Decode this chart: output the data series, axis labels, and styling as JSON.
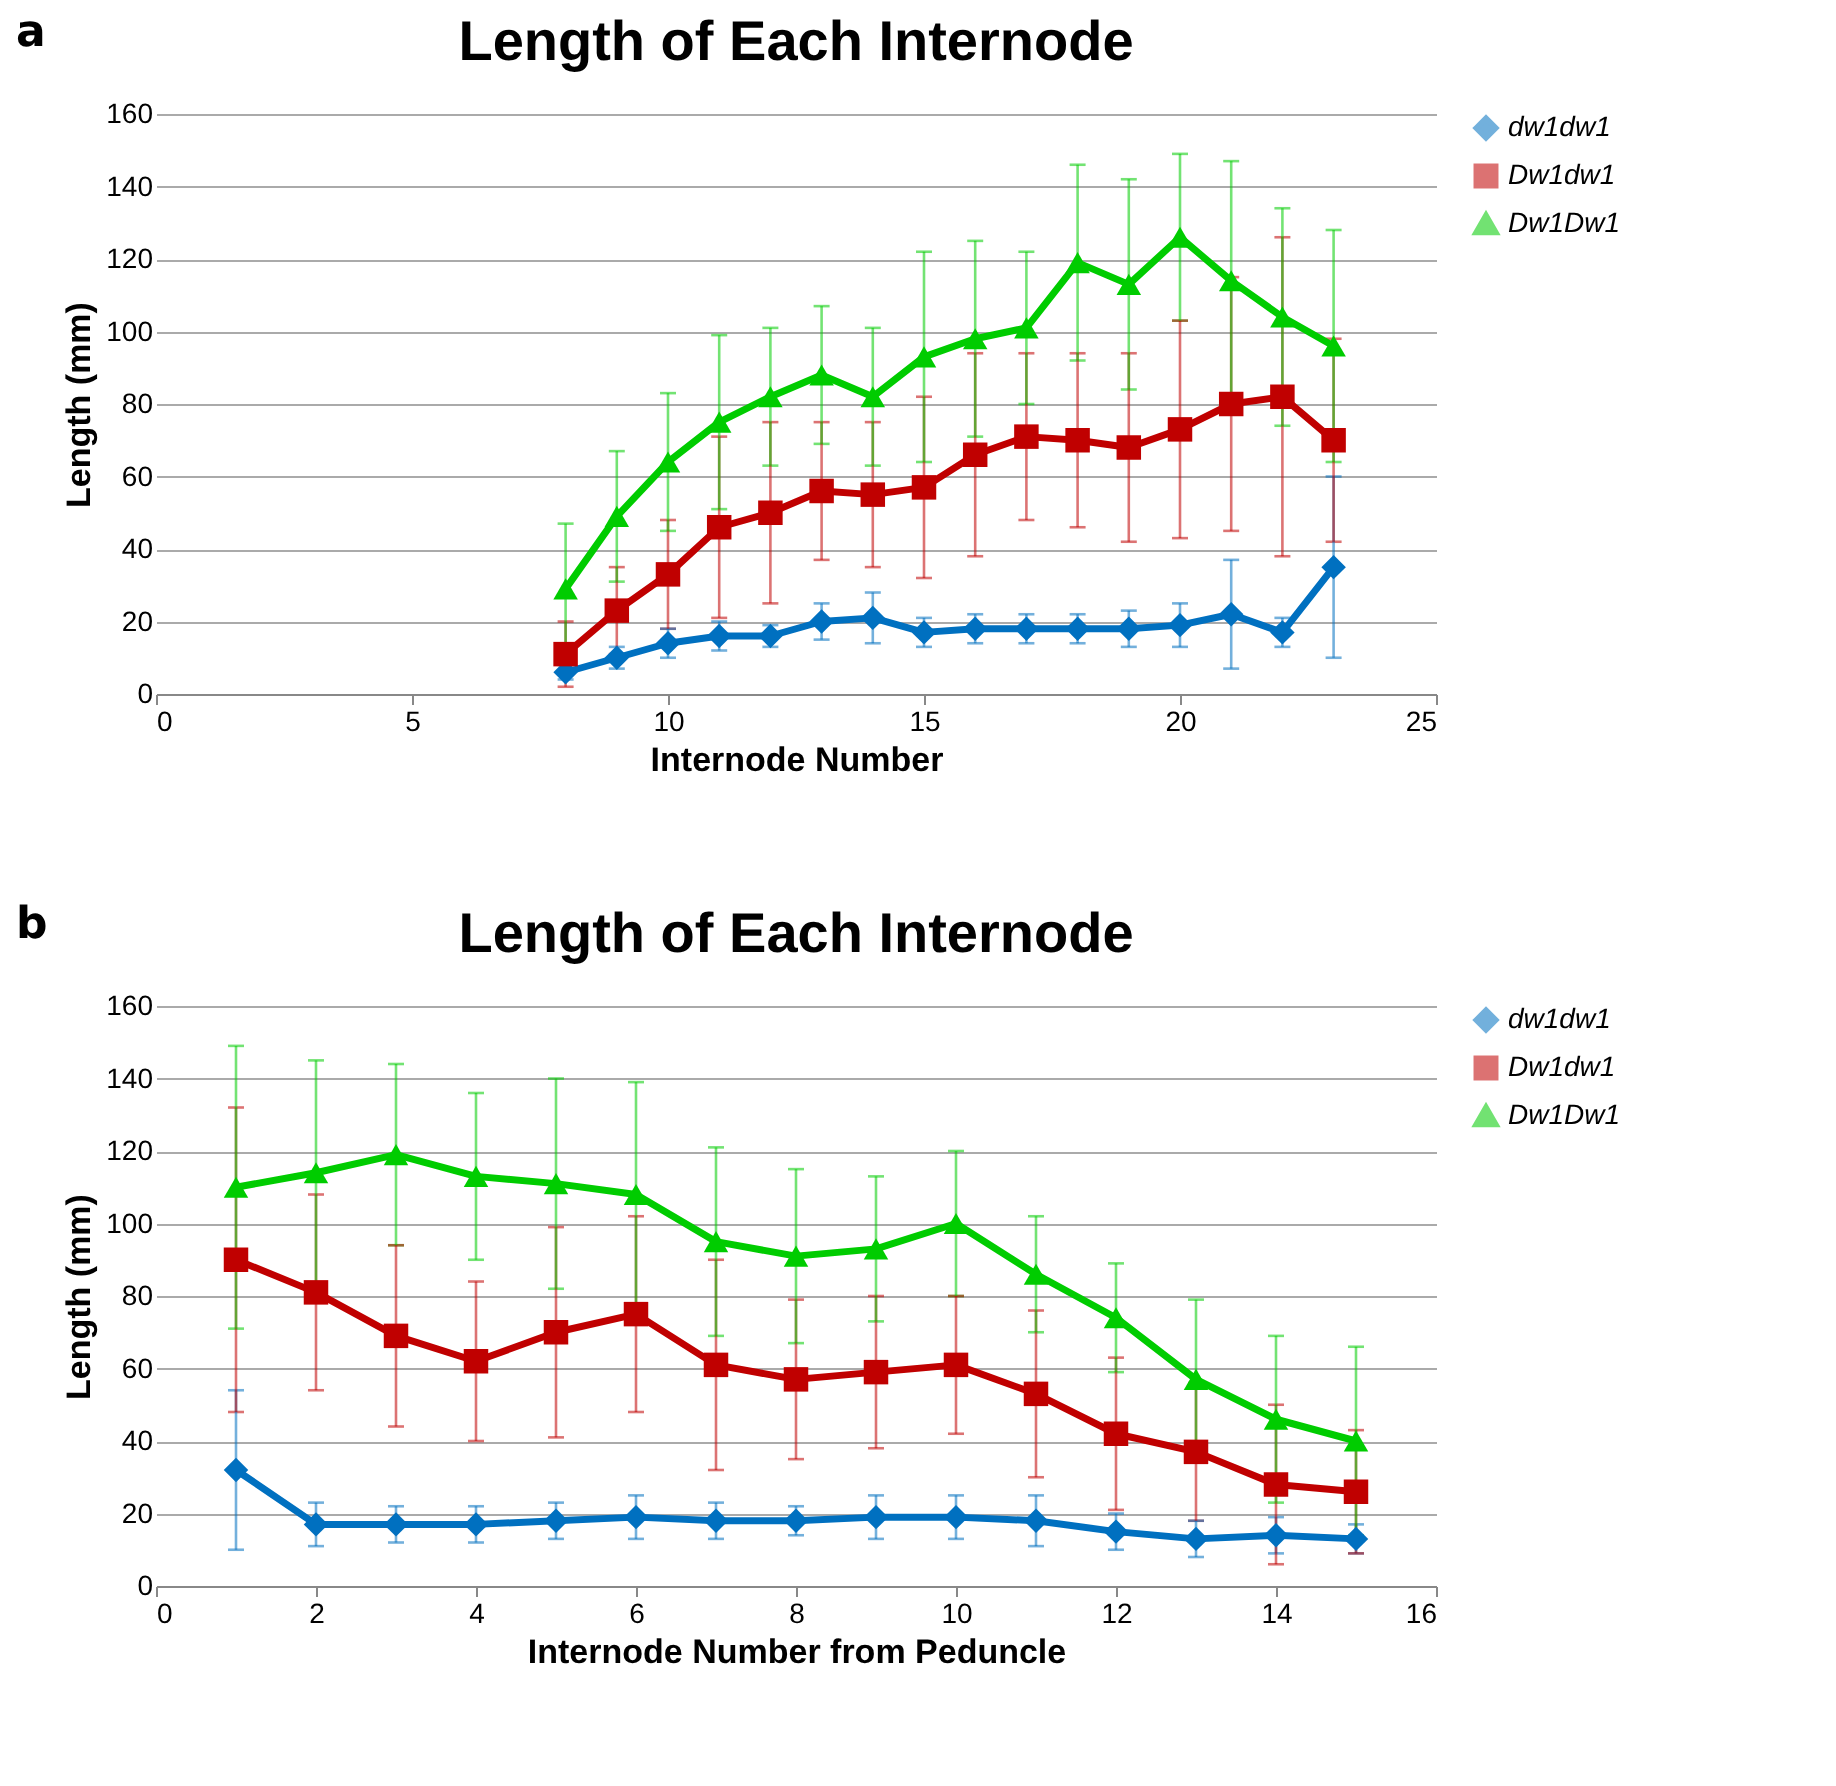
{
  "chart_data": [
    {
      "type": "line",
      "title": "Length of Each Internode",
      "xlabel": "Internode Number",
      "ylabel": "Length (mm)",
      "annotations": [
        "a"
      ],
      "x": [
        8,
        9,
        10,
        11,
        12,
        13,
        14,
        15,
        16,
        17,
        18,
        19,
        20,
        21,
        22,
        23
      ],
      "xlim": [
        0,
        25
      ],
      "xticks": [
        0,
        5,
        10,
        15,
        20,
        25
      ],
      "ylim": [
        0,
        160
      ],
      "yticks": [
        0,
        20,
        40,
        60,
        80,
        100,
        120,
        140,
        160
      ],
      "grid": "y",
      "legend": "right",
      "series": [
        {
          "name": "dw1dw1",
          "color": "#0070c0",
          "marker": "diamond",
          "values": [
            6,
            10,
            14,
            16,
            16,
            20,
            21,
            17,
            18,
            18,
            18,
            18,
            19,
            22,
            17,
            35
          ],
          "errors": [
            2,
            3,
            4,
            4,
            3,
            5,
            7,
            4,
            4,
            4,
            4,
            5,
            6,
            15,
            4,
            25
          ]
        },
        {
          "name": "Dw1dw1",
          "color": "#c00000",
          "marker": "square",
          "values": [
            11,
            23,
            33,
            46,
            50,
            56,
            55,
            57,
            66,
            71,
            70,
            68,
            73,
            80,
            82,
            70
          ],
          "errors": [
            9,
            12,
            15,
            25,
            25,
            19,
            20,
            25,
            28,
            23,
            24,
            26,
            30,
            35,
            44,
            28
          ]
        },
        {
          "name": "Dw1Dw1",
          "color": "#00cc00",
          "marker": "triangle",
          "values": [
            29,
            49,
            64,
            75,
            82,
            88,
            82,
            93,
            98,
            101,
            119,
            113,
            126,
            114,
            104,
            96
          ],
          "errors": [
            18,
            18,
            19,
            24,
            19,
            19,
            19,
            29,
            27,
            21,
            27,
            29,
            23,
            33,
            30,
            32
          ]
        }
      ]
    },
    {
      "type": "line",
      "title": "Length of Each Internode",
      "xlabel": "Internode Number from Peduncle",
      "ylabel": "Length (mm)",
      "annotations": [
        "b"
      ],
      "x": [
        1,
        2,
        3,
        4,
        5,
        6,
        7,
        8,
        9,
        10,
        11,
        12,
        13,
        14,
        15
      ],
      "xlim": [
        0,
        16
      ],
      "xticks": [
        0,
        2,
        4,
        6,
        8,
        10,
        12,
        14,
        16
      ],
      "ylim": [
        0,
        160
      ],
      "yticks": [
        0,
        20,
        40,
        60,
        80,
        100,
        120,
        140,
        160
      ],
      "grid": "y",
      "legend": "right",
      "series": [
        {
          "name": "dw1dw1",
          "color": "#0070c0",
          "marker": "diamond",
          "values": [
            32,
            17,
            17,
            17,
            18,
            19,
            18,
            18,
            19,
            19,
            18,
            15,
            13,
            14,
            13
          ],
          "errors": [
            22,
            6,
            5,
            5,
            5,
            6,
            5,
            4,
            6,
            6,
            7,
            5,
            5,
            5,
            4
          ]
        },
        {
          "name": "Dw1dw1",
          "color": "#c00000",
          "marker": "square",
          "values": [
            90,
            81,
            69,
            62,
            70,
            75,
            61,
            57,
            59,
            61,
            53,
            42,
            37,
            28,
            26
          ],
          "errors": [
            42,
            27,
            25,
            22,
            29,
            27,
            29,
            22,
            21,
            19,
            23,
            21,
            19,
            22,
            17
          ]
        },
        {
          "name": "Dw1Dw1",
          "color": "#00cc00",
          "marker": "triangle",
          "values": [
            110,
            114,
            119,
            113,
            111,
            108,
            95,
            91,
            93,
            100,
            86,
            74,
            57,
            46,
            40
          ],
          "errors": [
            39,
            31,
            25,
            23,
            29,
            31,
            26,
            24,
            20,
            20,
            16,
            15,
            22,
            23,
            26
          ]
        }
      ]
    }
  ]
}
